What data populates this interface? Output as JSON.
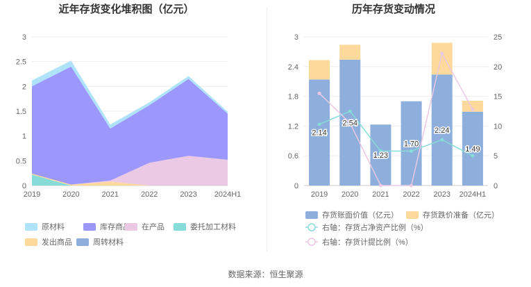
{
  "footer": {
    "source": "数据来源：恒生聚源"
  },
  "chart_data": [
    {
      "type": "area",
      "stacked": true,
      "title": "近年存货变化堆积图（亿元）",
      "categories": [
        "2019",
        "2020",
        "2021",
        "2022",
        "2023",
        "2024H1"
      ],
      "y_ticks": [
        "0",
        "0.5",
        "1",
        "1.5",
        "2",
        "2.5",
        "3"
      ],
      "ylim": [
        0,
        3
      ],
      "grid": true,
      "legend_position": "bottom",
      "series": [
        {
          "name": "委托加工材料",
          "color": "#86dcd8",
          "values": [
            0.22,
            0.0,
            0.0,
            0.0,
            0.0,
            0.0
          ]
        },
        {
          "name": "发出商品",
          "color": "#fdd99b",
          "values": [
            0.02,
            0.02,
            0.08,
            0.0,
            0.0,
            0.0
          ]
        },
        {
          "name": "周转材料",
          "color": "#8eaedc",
          "values": [
            0.0,
            0.0,
            0.0,
            0.0,
            0.0,
            0.0
          ]
        },
        {
          "name": "在产品",
          "color": "#ebc8e3",
          "values": [
            0.0,
            0.0,
            0.02,
            0.46,
            0.6,
            0.52
          ]
        },
        {
          "name": "库存商品",
          "color": "#9b97fb",
          "values": [
            1.76,
            2.38,
            1.05,
            1.16,
            1.55,
            0.93
          ]
        },
        {
          "name": "原材料",
          "color": "#aee3fa",
          "values": [
            0.12,
            0.12,
            0.08,
            0.06,
            0.06,
            0.04
          ]
        }
      ],
      "legend_order": [
        "原材料",
        "库存商品",
        "在产品",
        "委托加工材料",
        "发出商品",
        "周转材料"
      ]
    },
    {
      "type": "bar",
      "stacked": true,
      "title": "历年存货变动情况",
      "categories": [
        "2019",
        "2020",
        "2021",
        "2022",
        "2023",
        "2024H1"
      ],
      "y_left_ticks": [
        "0",
        "0.6",
        "1.2",
        "1.8",
        "2.4",
        "3"
      ],
      "y_left_lim": [
        0,
        3
      ],
      "y_right_ticks": [
        "0",
        "5",
        "10",
        "15",
        "20",
        "25"
      ],
      "y_right_lim": [
        0,
        25
      ],
      "grid": true,
      "legend_position": "bottom",
      "bar_series": [
        {
          "name": "存货账面价值（亿元）",
          "color": "#8eaedc",
          "values": [
            2.14,
            2.54,
            1.23,
            1.7,
            2.24,
            1.49
          ],
          "labels": [
            "2.14",
            "2.54",
            "1.23",
            "1.70",
            "2.24",
            "1.49"
          ]
        },
        {
          "name": "存货跌价准备（亿元）",
          "color": "#fdd99b",
          "values": [
            0.39,
            0.3,
            0.0,
            0.0,
            0.64,
            0.22
          ]
        }
      ],
      "line_series": [
        {
          "name": "右轴：存货占净资产比例（%）",
          "color": "#86dcd8",
          "values": [
            10.3,
            12.5,
            5.8,
            5.8,
            7.7,
            5.0
          ]
        },
        {
          "name": "右轴：存货计提比例（%）",
          "color": "#ebc8e3",
          "values": [
            15.5,
            10.5,
            0.0,
            0.0,
            22.2,
            12.8
          ]
        }
      ]
    }
  ]
}
